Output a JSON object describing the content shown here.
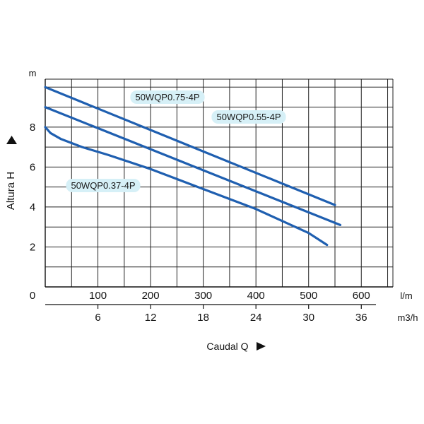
{
  "chart_data": {
    "type": "line",
    "y_unit": "m",
    "ylabel": "Altura H",
    "xlabel": "Caudal Q",
    "x_unit_primary": "l/m",
    "x_unit_secondary": "m3/h",
    "ylim": [
      0,
      10.4
    ],
    "xlim": [
      0,
      660
    ],
    "y_ticks": [
      "2",
      "4",
      "6",
      "8"
    ],
    "y_zero_label": "0",
    "x_ticks_primary": [
      "100",
      "200",
      "300",
      "400",
      "500",
      "600"
    ],
    "x_ticks_secondary": [
      "6",
      "12",
      "18",
      "24",
      "30",
      "36"
    ],
    "grid": true,
    "line_color": "#1f5fb0",
    "label_bg_color": "#d6f0f7",
    "series": [
      {
        "name": "50WQP0.75-4P",
        "x": [
          0,
          550
        ],
        "y": [
          10,
          4.1
        ]
      },
      {
        "name": "50WQP0.55-4P",
        "x": [
          0,
          560
        ],
        "y": [
          9.0,
          3.1
        ]
      },
      {
        "name": "50WQP0.37-4P",
        "x": [
          0,
          10,
          30,
          70,
          120,
          200,
          300,
          400,
          500,
          535
        ],
        "y": [
          8.0,
          7.7,
          7.4,
          7.0,
          6.6,
          5.9,
          4.9,
          3.9,
          2.7,
          2.1
        ]
      }
    ]
  }
}
